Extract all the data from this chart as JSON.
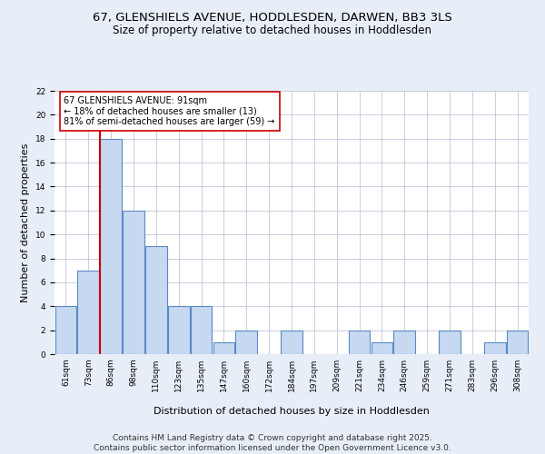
{
  "title": "67, GLENSHIELS AVENUE, HODDLESDEN, DARWEN, BB3 3LS",
  "subtitle": "Size of property relative to detached houses in Hoddlesden",
  "xlabel": "Distribution of detached houses by size in Hoddlesden",
  "ylabel": "Number of detached properties",
  "categories": [
    "61sqm",
    "73sqm",
    "86sqm",
    "98sqm",
    "110sqm",
    "123sqm",
    "135sqm",
    "147sqm",
    "160sqm",
    "172sqm",
    "184sqm",
    "197sqm",
    "209sqm",
    "221sqm",
    "234sqm",
    "246sqm",
    "259sqm",
    "271sqm",
    "283sqm",
    "296sqm",
    "308sqm"
  ],
  "values": [
    4,
    7,
    18,
    12,
    9,
    4,
    4,
    1,
    2,
    0,
    2,
    0,
    0,
    2,
    1,
    2,
    0,
    2,
    0,
    1,
    2
  ],
  "bar_color": "#c6d9f0",
  "bar_edge_color": "#5a8ac6",
  "annotation_text": "67 GLENSHIELS AVENUE: 91sqm\n← 18% of detached houses are smaller (13)\n81% of semi-detached houses are larger (59) →",
  "annotation_box_color": "#ffffff",
  "annotation_box_edge": "#cc0000",
  "red_line_color": "#cc0000",
  "ylim": [
    0,
    22
  ],
  "yticks": [
    0,
    2,
    4,
    6,
    8,
    10,
    12,
    14,
    16,
    18,
    20,
    22
  ],
  "footnote": "Contains HM Land Registry data © Crown copyright and database right 2025.\nContains public sector information licensed under the Open Government Licence v3.0.",
  "background_color": "#e8eef7",
  "plot_background": "#ffffff",
  "title_fontsize": 9.5,
  "subtitle_fontsize": 8.5,
  "tick_fontsize": 6.5,
  "label_fontsize": 8,
  "annotation_fontsize": 7,
  "footnote_fontsize": 6.5
}
